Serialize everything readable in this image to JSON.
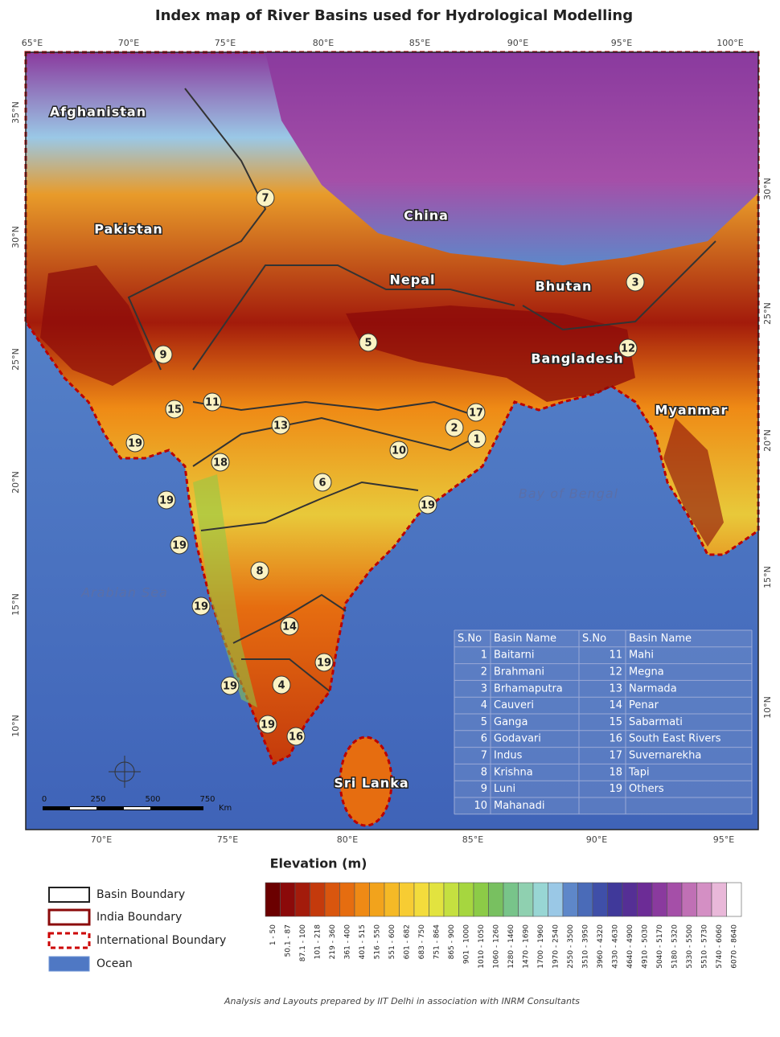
{
  "title": "Index map of River Basins used for Hydrological Modelling",
  "map": {
    "top_labels": [
      "65°E",
      "70°E",
      "75°E",
      "80°E",
      "85°E",
      "90°E",
      "95°E",
      "100°E"
    ],
    "left_labels": [
      "35°N",
      "30°N",
      "25°N",
      "20°N",
      "15°N",
      "10°N"
    ],
    "right_labels": [
      "30°N",
      "25°N",
      "20°N",
      "15°N",
      "10°N"
    ],
    "bottom_labels": [
      "70°E",
      "75°E",
      "80°E",
      "85°E",
      "90°E",
      "95°E"
    ],
    "countries": [
      "Afghanistan",
      "Pakistan",
      "China",
      "Nepal",
      "Bhutan",
      "Bangladesh",
      "Myanmar",
      "Sri Lanka"
    ],
    "seas": [
      "Arabian Sea",
      "Bay of Bengal"
    ],
    "basin_markers": [
      "7",
      "3",
      "5",
      "9",
      "12",
      "15",
      "11",
      "17",
      "2",
      "1",
      "19",
      "13",
      "10",
      "18",
      "6",
      "19",
      "19",
      "19",
      "8",
      "19",
      "14",
      "19",
      "4",
      "19",
      "19",
      "16"
    ],
    "scale": {
      "ticks": [
        "0",
        "250",
        "500",
        "750"
      ],
      "unit": "Km"
    }
  },
  "basin_table": {
    "header": [
      "S.No",
      "Basin Name",
      "S.No",
      "Basin Name"
    ],
    "rows": [
      [
        "1",
        "Baitarni",
        "11",
        "Mahi"
      ],
      [
        "2",
        "Brahmani",
        "12",
        "Megna"
      ],
      [
        "3",
        "Brhamaputra",
        "13",
        "Narmada"
      ],
      [
        "4",
        "Cauveri",
        "14",
        "Penar"
      ],
      [
        "5",
        "Ganga",
        "15",
        "Sabarmati"
      ],
      [
        "6",
        "Godavari",
        "16",
        "South East Rivers"
      ],
      [
        "7",
        "Indus",
        "17",
        "Suvernarekha"
      ],
      [
        "8",
        "Krishna",
        "18",
        "Tapi"
      ],
      [
        "9",
        "Luni",
        "19",
        "Others"
      ],
      [
        "10",
        "Mahanadi"
      ]
    ]
  },
  "legend": {
    "items": [
      "Basin Boundary",
      "India Boundary",
      "International Boundary",
      "Ocean"
    ],
    "elevation_title": "Elevation (m)",
    "elevation_classes": [
      {
        "label": "1 - 50",
        "color": "#6b0000"
      },
      {
        "label": "50.1 - 87",
        "color": "#8b0a0a"
      },
      {
        "label": "87.1 - 100",
        "color": "#a31b0b"
      },
      {
        "label": "101 - 218",
        "color": "#c43a0c"
      },
      {
        "label": "219 - 360",
        "color": "#d9560e"
      },
      {
        "label": "361 - 400",
        "color": "#e66d10"
      },
      {
        "label": "401 - 515",
        "color": "#ef8a15"
      },
      {
        "label": "516 - 550",
        "color": "#f2a31c"
      },
      {
        "label": "551 - 600",
        "color": "#f5b926"
      },
      {
        "label": "601 - 682",
        "color": "#f7cc33"
      },
      {
        "label": "683 - 750",
        "color": "#f3dc3c"
      },
      {
        "label": "751 - 864",
        "color": "#e2e33f"
      },
      {
        "label": "865 - 900",
        "color": "#c5e040"
      },
      {
        "label": "901 - 1000",
        "color": "#a6d63f"
      },
      {
        "label": "1010 - 1050",
        "color": "#8ccb47"
      },
      {
        "label": "1060 - 1260",
        "color": "#78c060"
      },
      {
        "label": "1280 - 1460",
        "color": "#78c48a"
      },
      {
        "label": "1470 - 1690",
        "color": "#8fd0b0"
      },
      {
        "label": "1700 - 1960",
        "color": "#98d6d4"
      },
      {
        "label": "1970 - 2540",
        "color": "#9ac8e6"
      },
      {
        "label": "2550 - 3500",
        "color": "#5e87c9"
      },
      {
        "label": "3510 - 3950",
        "color": "#4a6bb8"
      },
      {
        "label": "3960 - 4320",
        "color": "#3f4fa8"
      },
      {
        "label": "4330 - 4630",
        "color": "#40399a"
      },
      {
        "label": "4640 - 4900",
        "color": "#552f95"
      },
      {
        "label": "4910 - 5030",
        "color": "#6c2c96"
      },
      {
        "label": "5040 - 5170",
        "color": "#8a3a9e"
      },
      {
        "label": "5180 - 5320",
        "color": "#a54fa8"
      },
      {
        "label": "5330 - 5500",
        "color": "#c070b5"
      },
      {
        "label": "5510 - 5730",
        "color": "#d48fc4"
      },
      {
        "label": "5740 - 6060",
        "color": "#e9b8d9"
      },
      {
        "label": "6070 - 8640",
        "color": "#ffffff"
      }
    ]
  },
  "footer": "Analysis and Layouts prepared by IIT Delhi in association with INRM Consultants"
}
